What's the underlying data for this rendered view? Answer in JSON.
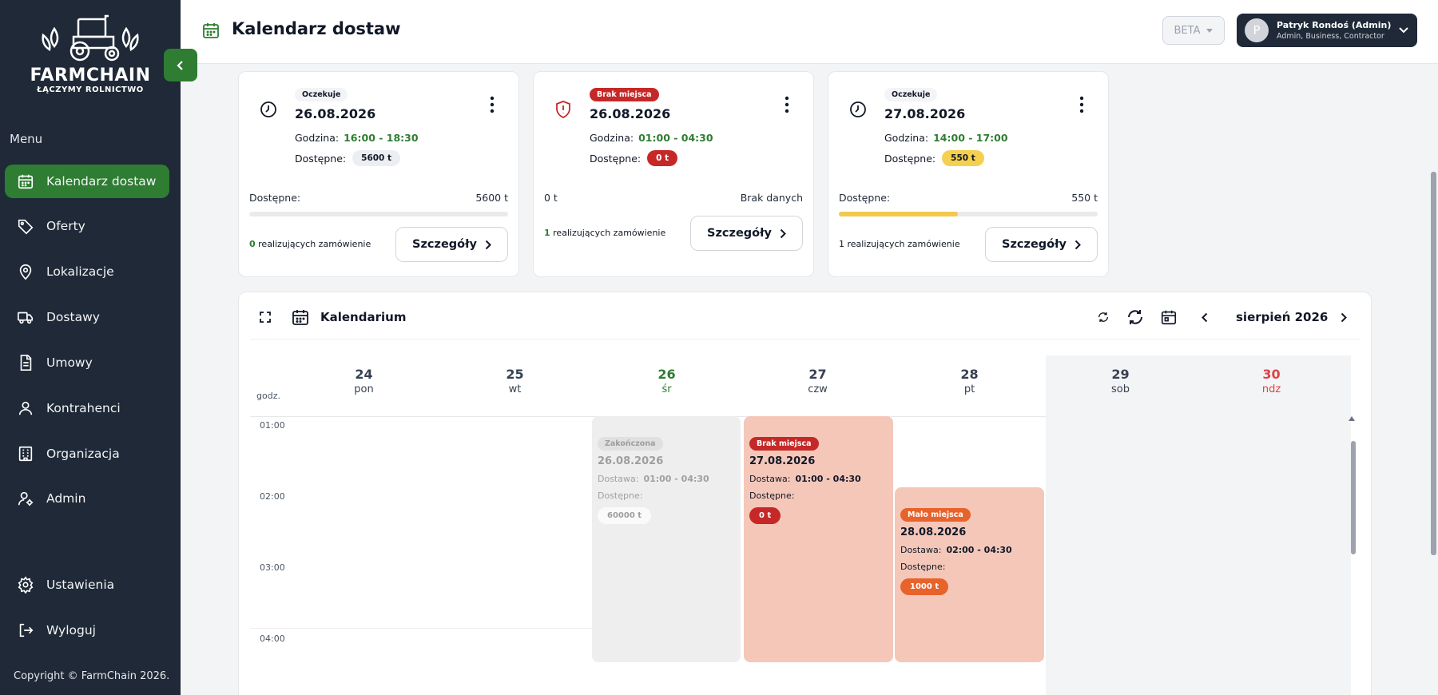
{
  "sidebar": {
    "logo_title": "FARMCHAIN",
    "logo_subtitle": "ŁĄCZYMY ROLNICTWO",
    "menu_label": "Menu",
    "items": [
      {
        "label": "Kalendarz dostaw",
        "icon": "calendar-icon"
      },
      {
        "label": "Oferty",
        "icon": "tag-icon"
      },
      {
        "label": "Lokalizacje",
        "icon": "map-pin-icon"
      },
      {
        "label": "Dostawy",
        "icon": "truck-icon"
      },
      {
        "label": "Umowy",
        "icon": "document-icon"
      },
      {
        "label": "Kontrahenci",
        "icon": "user-icon"
      },
      {
        "label": "Organizacja",
        "icon": "building-icon"
      },
      {
        "label": "Admin",
        "icon": "user-gear-icon"
      }
    ],
    "bottom_items": [
      {
        "label": "Ustawienia",
        "icon": "gear-icon"
      },
      {
        "label": "Wyloguj",
        "icon": "logout-icon"
      }
    ],
    "copyright": "Copyright © FarmChain 2026."
  },
  "header": {
    "title": "Kalendarz dostaw",
    "beta_label": "BETA",
    "user_initial": "P",
    "user_name": "Patryk Rondoś (Admin)",
    "user_roles": "Admin, Business, Contractor"
  },
  "cards": [
    {
      "status": "Oczekuje",
      "date": "26.08.2026",
      "time_label": "Godzina:",
      "time": "16:00 - 18:30",
      "available_label": "Dostępne:",
      "available_pill": "5600 t",
      "summary_left": "Dostępne:",
      "summary_right": "5600 t",
      "progress": 0,
      "orders_count": "0",
      "orders_text": "realizujących zamówienie",
      "details_label": "Szczegóły"
    },
    {
      "status": "Brak miejsca",
      "date": "26.08.2026",
      "time_label": "Godzina:",
      "time": "01:00 - 04:30",
      "available_label": "Dostępne:",
      "available_pill": "0 t",
      "summary_left": "0 t",
      "summary_right": "Brak danych",
      "orders_count": "1",
      "orders_text": "realizujących zamówienie",
      "details_label": "Szczegóły"
    },
    {
      "status": "Oczekuje",
      "date": "27.08.2026",
      "time_label": "Godzina:",
      "time": "14:00 - 17:00",
      "available_label": "Dostępne:",
      "available_pill": "550 t",
      "summary_left": "Dostępne:",
      "summary_right": "550 t",
      "progress": 0.46,
      "orders_count": "1",
      "orders_text": "realizujących zamówienie",
      "details_label": "Szczegóły"
    }
  ],
  "calendar": {
    "title": "Kalendarium",
    "month": "sierpień 2026",
    "hours_label": "godz.",
    "days": [
      {
        "num": "24",
        "name": "pon"
      },
      {
        "num": "25",
        "name": "wt"
      },
      {
        "num": "26",
        "name": "śr"
      },
      {
        "num": "27",
        "name": "czw"
      },
      {
        "num": "28",
        "name": "pt"
      },
      {
        "num": "29",
        "name": "sob"
      },
      {
        "num": "30",
        "name": "ndz"
      }
    ],
    "hours": [
      "01:00",
      "02:00",
      "03:00",
      "04:00"
    ],
    "events": [
      {
        "status": "Zakończona",
        "date": "26.08.2026",
        "delivery_label": "Dostawa:",
        "delivery": "01:00 - 04:30",
        "available_label": "Dostępne:",
        "available": "60000 t"
      },
      {
        "status": "Brak miejsca",
        "date": "27.08.2026",
        "delivery_label": "Dostawa:",
        "delivery": "01:00 - 04:30",
        "available_label": "Dostępne:",
        "available": "0 t"
      },
      {
        "status": "Mało miejsca",
        "date": "28.08.2026",
        "delivery_label": "Dostawa:",
        "delivery": "02:00 - 04:30",
        "available_label": "Dostępne:",
        "available": "1000 t"
      }
    ]
  },
  "colors": {
    "sidebar_bg": "#1f2937",
    "accent_green": "#2e7d32",
    "danger_red": "#c62828",
    "warning_yellow": "#f5d04f",
    "orange": "#e8632c"
  }
}
